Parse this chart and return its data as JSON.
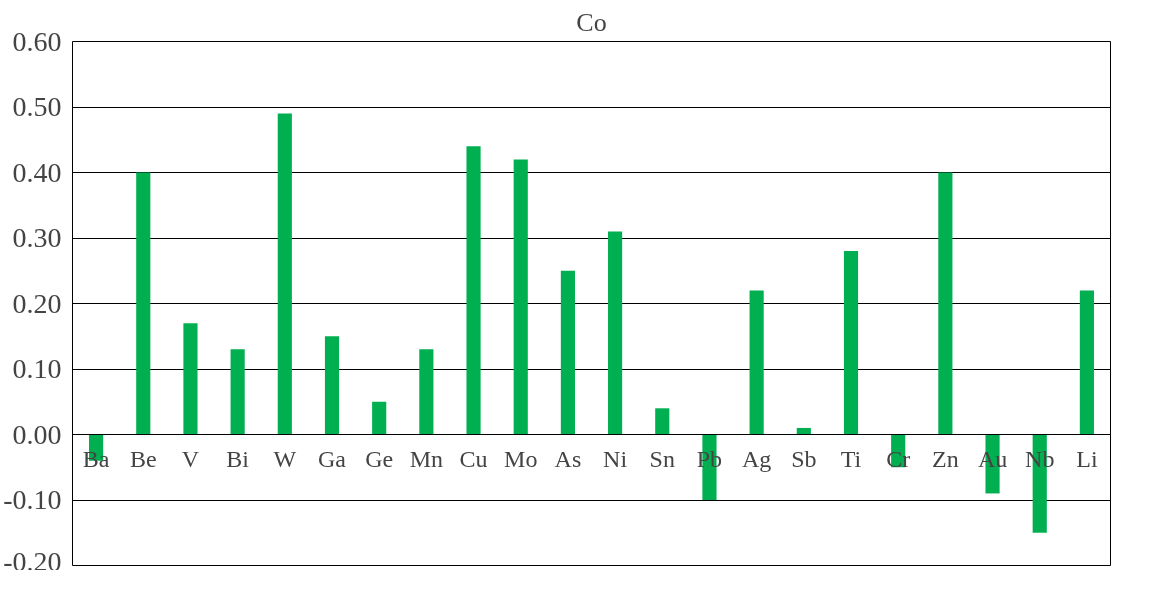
{
  "chart_data": {
    "type": "bar",
    "title": "Co",
    "categories": [
      "Ba",
      "Be",
      "V",
      "Bi",
      "W",
      "Ga",
      "Ge",
      "Mn",
      "Cu",
      "Mo",
      "As",
      "Ni",
      "Sn",
      "Pb",
      "Ag",
      "Sb",
      "Ti",
      "Cr",
      "Zn",
      "Au",
      "Nb",
      "Li"
    ],
    "values": [
      -0.04,
      0.4,
      0.17,
      0.13,
      0.49,
      0.15,
      0.05,
      0.13,
      0.44,
      0.42,
      0.25,
      0.31,
      0.04,
      -0.1,
      0.22,
      0.01,
      0.28,
      -0.05,
      0.4,
      -0.09,
      -0.15,
      0.22
    ],
    "color": "#00b050",
    "ylim": [
      -0.2,
      0.6
    ],
    "yticks": [
      {
        "value": -0.2,
        "label": "-0.20"
      },
      {
        "value": -0.1,
        "label": "-0.10"
      },
      {
        "value": 0,
        "label": "0.00"
      },
      {
        "value": 0.1,
        "label": "0.10"
      },
      {
        "value": 0.2,
        "label": "0.20"
      },
      {
        "value": 0.3,
        "label": "0.30"
      },
      {
        "value": 0.4,
        "label": "0.40"
      },
      {
        "value": 0.5,
        "label": "0.50"
      },
      {
        "value": 0.6,
        "label": "0.60"
      }
    ],
    "grid": "y"
  }
}
